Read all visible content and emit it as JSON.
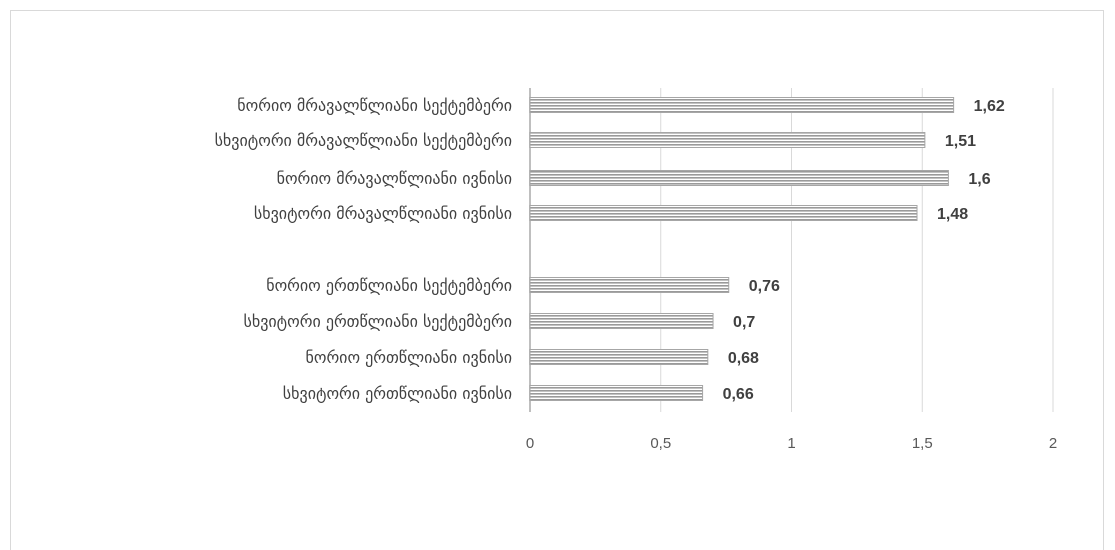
{
  "chart_data": {
    "type": "bar",
    "orientation": "horizontal",
    "categories": [
      "ნორიო მრავალწლიანი სექტემბერი",
      "სხვიტორი მრავალწლიანი სექტემბერი",
      "ნორიო მრავალწლიანი ივნისი",
      "სხვიტორი მრავალწლიანი ივნისი",
      "",
      "ნორიო ერთწლიანი სექტემბერი",
      "სხვიტორი ერთწლიანი სექტემბერი",
      "ნორიო ერთწლიანი ივნისი",
      "სხვიტორი ერთწლიანი ივნისი"
    ],
    "values": [
      1.62,
      1.51,
      1.6,
      1.48,
      null,
      0.76,
      0.7,
      0.68,
      0.66
    ],
    "value_labels": [
      "1,62",
      "1,51",
      "1,6",
      "1,48",
      "",
      "0,76",
      "0,7",
      "0,68",
      "0,66"
    ],
    "xlim": [
      0,
      2
    ],
    "x_ticks": [
      0,
      0.5,
      1,
      1.5,
      2
    ],
    "x_tick_labels": [
      "0",
      "0,5",
      "1",
      "1,5",
      "2"
    ],
    "grid": true,
    "bar_pattern": "horizontal-stripes",
    "bar_color": "#a6a6a6",
    "title": "",
    "xlabel": "",
    "ylabel": ""
  }
}
